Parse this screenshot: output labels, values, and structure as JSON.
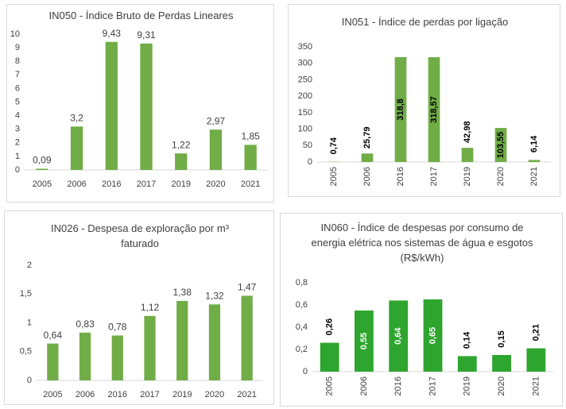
{
  "chart_data": [
    {
      "type": "bar",
      "title": "IN050 - Índice Bruto de Perdas Lineares",
      "categories": [
        "2005",
        "2006",
        "2016",
        "2017",
        "2019",
        "2020",
        "2021"
      ],
      "values": [
        0.09,
        3.2,
        9.43,
        9.31,
        1.22,
        2.97,
        1.85
      ],
      "value_labels": [
        "0,09",
        "3,2",
        "9,43",
        "9,31",
        "1,22",
        "2,97",
        "1,85"
      ],
      "color": "#70ad47",
      "ylim": [
        0,
        10
      ],
      "yticks": [
        0,
        1,
        2,
        3,
        4,
        5,
        6,
        7,
        8,
        9,
        10
      ],
      "grid": false
    },
    {
      "type": "bar",
      "title": "IN051 - Índice de perdas por ligação",
      "categories": [
        "2005",
        "2006",
        "2016",
        "2017",
        "2019",
        "2020",
        "2021"
      ],
      "values": [
        0.74,
        25.79,
        318.8,
        318.57,
        42.98,
        103.55,
        6.14
      ],
      "value_labels": [
        "0,74",
        "25,79",
        "318,8",
        "318,57",
        "42,98",
        "103,55",
        "6,14"
      ],
      "color": "#70ad47",
      "ylim": [
        0,
        350
      ],
      "yticks": [
        0,
        50,
        100,
        150,
        200,
        250,
        300,
        350
      ],
      "grid": false
    },
    {
      "type": "bar",
      "title": "IN026 - Despesa de exploração por m³ faturado",
      "categories": [
        "2005",
        "2006",
        "2016",
        "2017",
        "2019",
        "2020",
        "2021"
      ],
      "values": [
        0.64,
        0.83,
        0.78,
        1.12,
        1.38,
        1.32,
        1.47
      ],
      "value_labels": [
        "0,64",
        "0,83",
        "0,78",
        "1,12",
        "1,38",
        "1,32",
        "1,47"
      ],
      "color": "#70ad47",
      "ylim": [
        0,
        2
      ],
      "yticks": [
        0,
        {
          "value": 0.5,
          "label": "0,5"
        },
        1,
        {
          "value": 1.5,
          "label": "1,5"
        },
        2
      ],
      "grid": false
    },
    {
      "type": "bar",
      "title": "IN060 - Índice de despesas por consumo de energia elétrica nos sistemas de água e esgotos (R$/kWh)",
      "categories": [
        "2005",
        "2006",
        "2016",
        "2017",
        "2019",
        "2020",
        "2021"
      ],
      "values": [
        0.26,
        0.55,
        0.64,
        0.65,
        0.14,
        0.15,
        0.21
      ],
      "value_labels": [
        "0,26",
        "0,55",
        "0,64",
        "0,65",
        "0,14",
        "0,15",
        "0,21"
      ],
      "color": "#2ea52e",
      "ylim": [
        0,
        0.8
      ],
      "yticks": [
        0,
        {
          "value": 0.2,
          "label": "0,2"
        },
        {
          "value": 0.4,
          "label": "0,4"
        },
        {
          "value": 0.6,
          "label": "0,6"
        },
        {
          "value": 0.8,
          "label": "0,8"
        }
      ],
      "grid": false
    }
  ]
}
